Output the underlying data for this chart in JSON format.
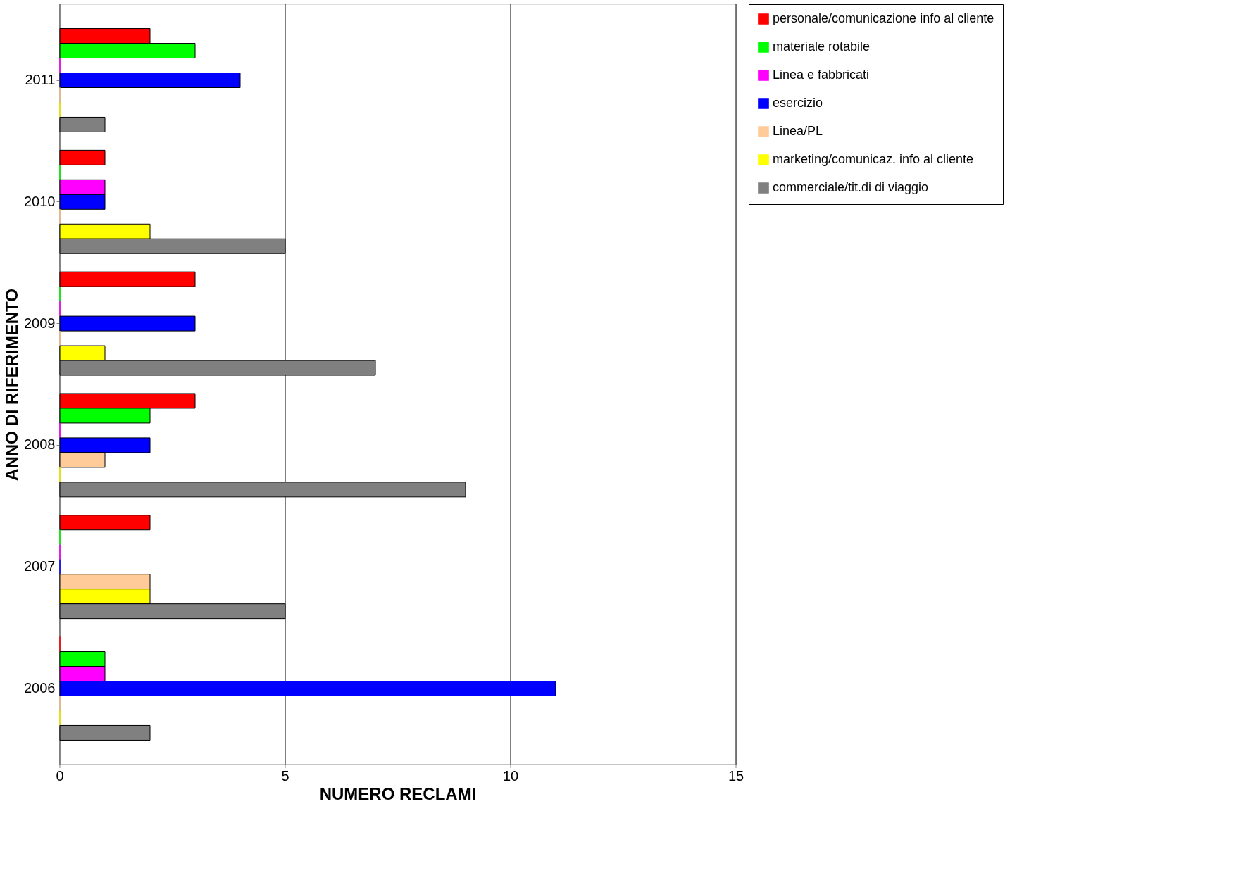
{
  "chart_data": {
    "type": "bar",
    "orientation": "horizontal",
    "xlabel": "NUMERO RECLAMI",
    "ylabel": "ANNO DI RIFERIMENTO",
    "categories": [
      "2011",
      "2010",
      "2009",
      "2008",
      "2007",
      "2006"
    ],
    "series": [
      {
        "name": "personale/comunicazione info al cliente",
        "color": "#ff0000",
        "values": [
          2,
          1,
          3,
          3,
          2,
          0
        ]
      },
      {
        "name": "materiale rotabile",
        "color": "#00ff00",
        "values": [
          3,
          0,
          0,
          2,
          0,
          1
        ]
      },
      {
        "name": "Linea e fabbricati",
        "color": "#ff00ff",
        "values": [
          0,
          1,
          0,
          0,
          0,
          1
        ]
      },
      {
        "name": "esercizio",
        "color": "#0000ff",
        "values": [
          4,
          1,
          3,
          2,
          0,
          11
        ]
      },
      {
        "name": "Linea/PL",
        "color": "#ffcc99",
        "values": [
          0,
          0,
          0,
          1,
          2,
          0
        ]
      },
      {
        "name": "marketing/comunicaz. info al cliente",
        "color": "#ffff00",
        "values": [
          0,
          2,
          1,
          0,
          2,
          0
        ]
      },
      {
        "name": "commerciale/tit.di di viaggio",
        "color": "#808080",
        "values": [
          1,
          5,
          7,
          9,
          5,
          2
        ]
      }
    ],
    "xlim": [
      0,
      15
    ],
    "xticks": [
      0,
      5,
      10,
      15
    ],
    "grid": "x",
    "legend": "right"
  }
}
